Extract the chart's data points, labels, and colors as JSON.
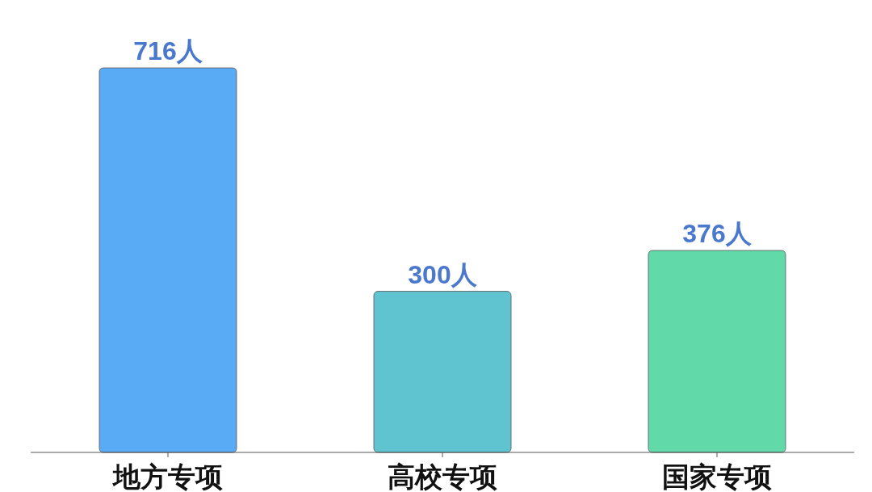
{
  "chart_data": {
    "type": "bar",
    "categories": [
      "地方专项",
      "高校专项",
      "国家专项"
    ],
    "values": [
      716,
      300,
      376
    ],
    "colors": [
      "#5aabf5",
      "#5fc4d0",
      "#62d9a9"
    ],
    "value_labels": [
      "716人",
      "300人",
      "376人"
    ]
  }
}
